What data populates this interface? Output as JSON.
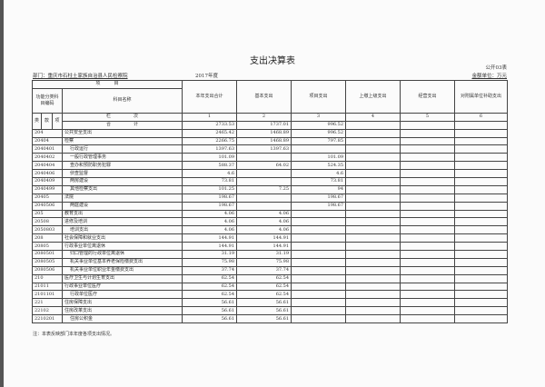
{
  "title": "支出决算表",
  "department": "部门：重庆市石柱土家族自治县人民检察院",
  "year": "2017年度",
  "table_code": "公开03表",
  "unit": "金额单位：万元",
  "headers": {
    "item": "项　　　目",
    "func_code": "功能分类科目编码",
    "subject_name": "科目名称",
    "col1": "本年支出合计",
    "col2": "基本支出",
    "col3": "项目支出",
    "col4": "上缴上级支出",
    "col5": "经营支出",
    "col6": "对附属单位补助支出",
    "lei": "类",
    "kuan": "款",
    "xiang": "项",
    "lan": "栏　　　　　次",
    "n1": "1",
    "n2": "2",
    "n3": "3",
    "n4": "4",
    "n5": "5",
    "n6": "6",
    "total": "合　　　　　计"
  },
  "total": {
    "col1": "2733.53",
    "col2": "1737.01",
    "col3": "996.52"
  },
  "rows": [
    {
      "code": "204",
      "name": "公共安全支出",
      "c1": "2465.42",
      "c2": "1468.89",
      "c3": "996.52",
      "level": 0
    },
    {
      "code": "20404",
      "name": "检察",
      "c1": "2266.75",
      "c2": "1468.89",
      "c3": "797.85",
      "level": 0
    },
    {
      "code": "2040401",
      "name": "行政运行",
      "c1": "1397.63",
      "c2": "1397.63",
      "c3": "",
      "level": 1
    },
    {
      "code": "2040402",
      "name": "一般行政管理事务",
      "c1": "101.09",
      "c2": "",
      "c3": "101.09",
      "level": 1
    },
    {
      "code": "2040404",
      "name": "查办和预防职务犯罪",
      "c1": "588.37",
      "c2": "64.02",
      "c3": "524.35",
      "level": 1
    },
    {
      "code": "2040406",
      "name": "侦查监督",
      "c1": "4.6",
      "c2": "",
      "c3": "4.6",
      "level": 1
    },
    {
      "code": "2040409",
      "name": "两房建设",
      "c1": "73.81",
      "c2": "",
      "c3": "73.81",
      "level": 1
    },
    {
      "code": "2040499",
      "name": "其他检察支出",
      "c1": "101.25",
      "c2": "7.25",
      "c3": "94",
      "level": 1
    },
    {
      "code": "20405",
      "name": "法院",
      "c1": "198.67",
      "c2": "",
      "c3": "198.67",
      "level": 0
    },
    {
      "code": "2040506",
      "name": "两庭建设",
      "c1": "198.67",
      "c2": "",
      "c3": "198.67",
      "level": 1
    },
    {
      "code": "205",
      "name": "教育支出",
      "c1": "4.06",
      "c2": "4.06",
      "c3": "",
      "level": 0
    },
    {
      "code": "20508",
      "name": "进修及培训",
      "c1": "4.06",
      "c2": "4.06",
      "c3": "",
      "level": 0
    },
    {
      "code": "2050803",
      "name": "培训支出",
      "c1": "4.06",
      "c2": "4.06",
      "c3": "",
      "level": 1
    },
    {
      "code": "208",
      "name": "社会保障和就业支出",
      "c1": "144.91",
      "c2": "144.91",
      "c3": "",
      "level": 0
    },
    {
      "code": "20805",
      "name": "行政事业单位离退休",
      "c1": "144.91",
      "c2": "144.91",
      "c3": "",
      "level": 0
    },
    {
      "code": "2080501",
      "name": "归口管理的行政单位离退休",
      "c1": "31.19",
      "c2": "31.19",
      "c3": "",
      "level": 1
    },
    {
      "code": "2080505",
      "name": "机关事业单位基本养老保险缴费支出",
      "c1": "75.98",
      "c2": "75.98",
      "c3": "",
      "level": 1
    },
    {
      "code": "2080506",
      "name": "机关事业单位职业年金缴费支出",
      "c1": "37.74",
      "c2": "37.74",
      "c3": "",
      "level": 1
    },
    {
      "code": "210",
      "name": "医疗卫生与计划生育支出",
      "c1": "62.54",
      "c2": "62.54",
      "c3": "",
      "level": 0
    },
    {
      "code": "21011",
      "name": "行政事业单位医疗",
      "c1": "62.54",
      "c2": "62.54",
      "c3": "",
      "level": 0
    },
    {
      "code": "2101101",
      "name": "行政单位医疗",
      "c1": "62.54",
      "c2": "62.54",
      "c3": "",
      "level": 1
    },
    {
      "code": "221",
      "name": "住房保障支出",
      "c1": "56.61",
      "c2": "56.61",
      "c3": "",
      "level": 0
    },
    {
      "code": "22102",
      "name": "住房改革支出",
      "c1": "56.61",
      "c2": "56.61",
      "c3": "",
      "level": 0
    },
    {
      "code": "2210201",
      "name": "住房公积金",
      "c1": "56.61",
      "c2": "56.61",
      "c3": "",
      "level": 1
    }
  ],
  "note": "注：本表反映部门本年度各项支出情况。"
}
